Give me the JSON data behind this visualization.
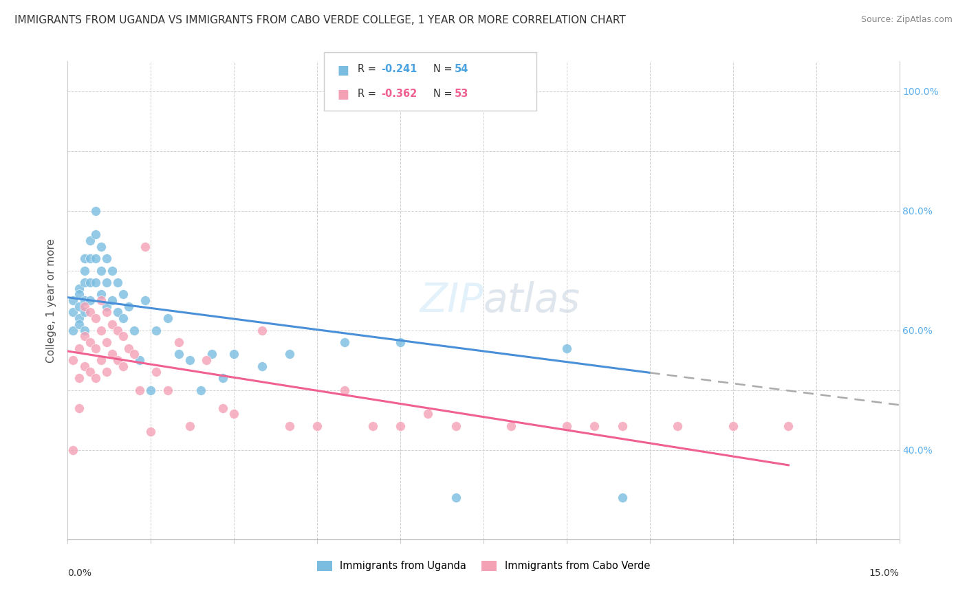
{
  "title": "IMMIGRANTS FROM UGANDA VS IMMIGRANTS FROM CABO VERDE COLLEGE, 1 YEAR OR MORE CORRELATION CHART",
  "source": "Source: ZipAtlas.com",
  "ylabel": "College, 1 year or more",
  "right_yticks": [
    1.0,
    0.8,
    0.6,
    0.4
  ],
  "right_yticklabels": [
    "100.0%",
    "80.0%",
    "60.0%",
    "40.0%"
  ],
  "legend_label_uganda": "Immigrants from Uganda",
  "legend_label_caboverde": "Immigrants from Cabo Verde",
  "color_uganda": "#7abde0",
  "color_caboverde": "#f4a0b5",
  "color_line_uganda": "#4a90d9",
  "color_line_caboverde": "#f06090",
  "color_line_dash": "#aaaaaa",
  "xlim": [
    0.0,
    0.15
  ],
  "ylim": [
    0.25,
    1.05
  ],
  "uganda_R": -0.241,
  "uganda_N": 54,
  "caboverde_R": -0.362,
  "caboverde_N": 53,
  "uganda_line_x0": 0.0,
  "uganda_line_y0": 0.655,
  "uganda_line_x1": 0.15,
  "uganda_line_y1": 0.475,
  "uganda_line_solid_end": 0.105,
  "caboverde_line_x0": 0.0,
  "caboverde_line_y0": 0.565,
  "caboverde_line_x1": 0.15,
  "caboverde_line_y1": 0.345,
  "caboverde_line_solid_end": 0.13,
  "background_color": "#ffffff",
  "grid_color": "#cccccc",
  "uganda_x": [
    0.001,
    0.001,
    0.001,
    0.002,
    0.002,
    0.002,
    0.002,
    0.002,
    0.003,
    0.003,
    0.003,
    0.003,
    0.003,
    0.003,
    0.004,
    0.004,
    0.004,
    0.004,
    0.005,
    0.005,
    0.005,
    0.005,
    0.006,
    0.006,
    0.006,
    0.007,
    0.007,
    0.007,
    0.008,
    0.008,
    0.009,
    0.009,
    0.01,
    0.01,
    0.011,
    0.012,
    0.013,
    0.014,
    0.015,
    0.016,
    0.018,
    0.02,
    0.022,
    0.024,
    0.026,
    0.028,
    0.03,
    0.035,
    0.04,
    0.05,
    0.06,
    0.07,
    0.09,
    0.1
  ],
  "uganda_y": [
    0.63,
    0.65,
    0.6,
    0.67,
    0.64,
    0.62,
    0.66,
    0.61,
    0.72,
    0.68,
    0.65,
    0.7,
    0.63,
    0.6,
    0.75,
    0.72,
    0.68,
    0.65,
    0.8,
    0.76,
    0.72,
    0.68,
    0.74,
    0.7,
    0.66,
    0.72,
    0.68,
    0.64,
    0.7,
    0.65,
    0.68,
    0.63,
    0.66,
    0.62,
    0.64,
    0.6,
    0.55,
    0.65,
    0.5,
    0.6,
    0.62,
    0.56,
    0.55,
    0.5,
    0.56,
    0.52,
    0.56,
    0.54,
    0.56,
    0.58,
    0.58,
    0.32,
    0.57,
    0.32
  ],
  "caboverde_x": [
    0.001,
    0.001,
    0.002,
    0.002,
    0.002,
    0.003,
    0.003,
    0.003,
    0.004,
    0.004,
    0.004,
    0.005,
    0.005,
    0.005,
    0.006,
    0.006,
    0.006,
    0.007,
    0.007,
    0.007,
    0.008,
    0.008,
    0.009,
    0.009,
    0.01,
    0.01,
    0.011,
    0.012,
    0.013,
    0.014,
    0.015,
    0.016,
    0.018,
    0.02,
    0.022,
    0.025,
    0.028,
    0.03,
    0.035,
    0.04,
    0.045,
    0.05,
    0.055,
    0.06,
    0.065,
    0.07,
    0.08,
    0.09,
    0.095,
    0.1,
    0.11,
    0.12,
    0.13
  ],
  "caboverde_y": [
    0.4,
    0.55,
    0.57,
    0.52,
    0.47,
    0.64,
    0.59,
    0.54,
    0.63,
    0.58,
    0.53,
    0.62,
    0.57,
    0.52,
    0.65,
    0.6,
    0.55,
    0.63,
    0.58,
    0.53,
    0.61,
    0.56,
    0.6,
    0.55,
    0.59,
    0.54,
    0.57,
    0.56,
    0.5,
    0.74,
    0.43,
    0.53,
    0.5,
    0.58,
    0.44,
    0.55,
    0.47,
    0.46,
    0.6,
    0.44,
    0.44,
    0.5,
    0.44,
    0.44,
    0.46,
    0.44,
    0.44,
    0.44,
    0.44,
    0.44,
    0.44,
    0.44,
    0.44
  ]
}
